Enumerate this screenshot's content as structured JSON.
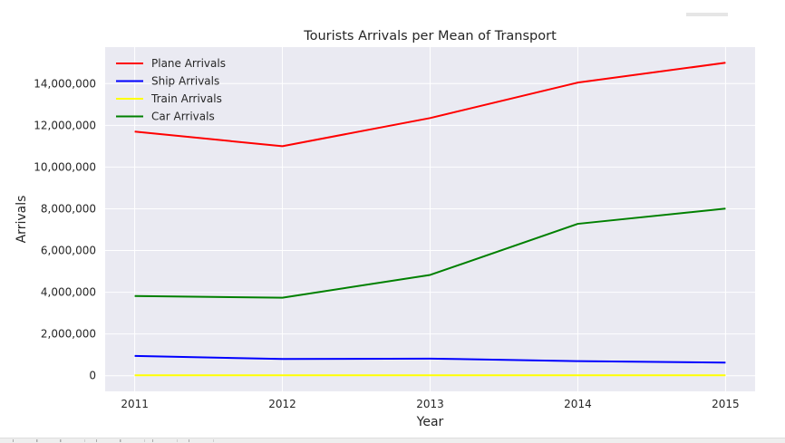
{
  "chart_data": {
    "type": "line",
    "title": "Tourists Arrivals per Mean of Transport",
    "xlabel": "Year",
    "ylabel": "Arrivals",
    "x": [
      2011,
      2012,
      2013,
      2014,
      2015
    ],
    "x_tick_labels": [
      "2011",
      "2012",
      "2013",
      "2014",
      "2015"
    ],
    "y_ticks": [
      0,
      2000000,
      4000000,
      6000000,
      8000000,
      10000000,
      12000000,
      14000000
    ],
    "y_tick_labels": [
      "0",
      "2,000,000",
      "4,000,000",
      "6,000,000",
      "8,000,000",
      "10,000,000",
      "12,000,000",
      "14,000,000"
    ],
    "xlim": [
      2010.8,
      2015.2
    ],
    "ylim": [
      -750000,
      15750000
    ],
    "grid": true,
    "legend_position": "top-left",
    "series": [
      {
        "name": "Plane Arrivals",
        "color": "#ff0000",
        "values": [
          11700000,
          11000000,
          12350000,
          14050000,
          15000000
        ]
      },
      {
        "name": "Ship Arrivals",
        "color": "#0000ff",
        "values": [
          950000,
          800000,
          820000,
          700000,
          630000
        ]
      },
      {
        "name": "Train Arrivals",
        "color": "#ffff00",
        "values": [
          20000,
          20000,
          20000,
          20000,
          20000
        ]
      },
      {
        "name": "Car Arrivals",
        "color": "#008000",
        "values": [
          3820000,
          3740000,
          4830000,
          7280000,
          8010000
        ]
      }
    ]
  },
  "colors": {
    "plot_background": "#eaeaf2",
    "grid": "#ffffff",
    "text": "#262626"
  }
}
